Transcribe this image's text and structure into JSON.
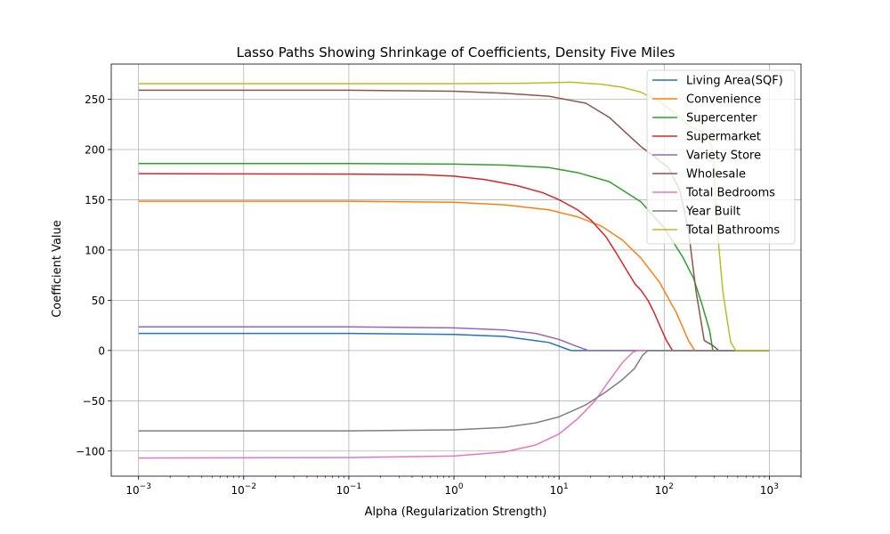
{
  "chart_data": {
    "type": "line",
    "title": "Lasso Paths Showing Shrinkage of Coefficients, Density Five Miles",
    "xlabel": "Alpha (Regularization Strength)",
    "ylabel": "Coefficient Value",
    "x_scale": "log",
    "xlim": [
      0.00055,
      2000
    ],
    "ylim": [
      -125,
      285
    ],
    "x_ticks": [
      0.001,
      0.01,
      0.1,
      1,
      10,
      100,
      1000
    ],
    "x_tick_labels": [
      {
        "base": "10",
        "exp": "−3"
      },
      {
        "base": "10",
        "exp": "−2"
      },
      {
        "base": "10",
        "exp": "−1"
      },
      {
        "base": "10",
        "exp": "0"
      },
      {
        "base": "10",
        "exp": "1"
      },
      {
        "base": "10",
        "exp": "2"
      },
      {
        "base": "10",
        "exp": "3"
      }
    ],
    "y_ticks": [
      -100,
      -50,
      0,
      50,
      100,
      150,
      200,
      250
    ],
    "y_tick_labels": [
      "−100",
      "−50",
      "0",
      "50",
      "100",
      "150",
      "200",
      "250"
    ],
    "grid": true,
    "legend_position": "top-right",
    "series": [
      {
        "name": "Living Area(SQF)",
        "color": "#1f77b4",
        "x": [
          0.001,
          0.1,
          1,
          3,
          8,
          13,
          1000
        ],
        "y": [
          17,
          17,
          16,
          14,
          8,
          0,
          0
        ]
      },
      {
        "name": "Convenience",
        "color": "#ff7f0e",
        "x": [
          0.001,
          0.1,
          1,
          3,
          8,
          15,
          25,
          40,
          60,
          90,
          130,
          170,
          195,
          1000
        ],
        "y": [
          148.5,
          148.5,
          147.5,
          145,
          140,
          133,
          124,
          110,
          92,
          68,
          38,
          10,
          0,
          0
        ]
      },
      {
        "name": "Supercenter",
        "color": "#2ca02c",
        "x": [
          0.001,
          0.1,
          1,
          3,
          8,
          15,
          30,
          60,
          100,
          150,
          190,
          230,
          270,
          290,
          1000
        ],
        "y": [
          186,
          186,
          185.5,
          184.5,
          182,
          177,
          168,
          148,
          122,
          93,
          72,
          45,
          20,
          0,
          0
        ]
      },
      {
        "name": "Supermarket",
        "color": "#d62728",
        "x": [
          0.001,
          0.1,
          0.5,
          1,
          2,
          4,
          7,
          10,
          15,
          20,
          28,
          35,
          45,
          53,
          60,
          70,
          80,
          95,
          105,
          120,
          1000
        ],
        "y": [
          176,
          175.5,
          175,
          173.5,
          170,
          164,
          157,
          150,
          140,
          130,
          113,
          97,
          78,
          66,
          60,
          50,
          38,
          20,
          10,
          0,
          0
        ]
      },
      {
        "name": "Variety Store",
        "color": "#9467bd",
        "x": [
          0.001,
          0.1,
          1,
          3,
          6,
          10,
          14,
          19,
          1000
        ],
        "y": [
          23.5,
          23.5,
          22.5,
          20.5,
          17,
          11,
          5,
          0,
          0
        ]
      },
      {
        "name": "Wholesale",
        "color": "#8c564b",
        "x": [
          0.001,
          0.1,
          1,
          3,
          8,
          18,
          30,
          45,
          60,
          80,
          110,
          140,
          170,
          200,
          240,
          290,
          330,
          1000
        ],
        "y": [
          259,
          259,
          258,
          256,
          253,
          246,
          232,
          215,
          203,
          193,
          182,
          160,
          120,
          60,
          10,
          5,
          0,
          0
        ]
      },
      {
        "name": "Total Bedrooms",
        "color": "#e377c2",
        "x": [
          0.001,
          0.1,
          1,
          3,
          6,
          10,
          15,
          22,
          30,
          40,
          50,
          56,
          1000
        ],
        "y": [
          -107,
          -106.5,
          -105,
          -101,
          -94,
          -83,
          -68,
          -50,
          -30,
          -12,
          -2,
          0,
          0
        ]
      },
      {
        "name": "Year Built",
        "color": "#7f7f7f",
        "x": [
          0.001,
          0.1,
          1,
          3,
          6,
          10,
          18,
          28,
          40,
          52,
          62,
          70,
          1000
        ],
        "y": [
          -80,
          -80,
          -79,
          -76.5,
          -72,
          -66,
          -54,
          -41,
          -29,
          -18,
          -5,
          0,
          0
        ]
      },
      {
        "name": "Total Bathrooms",
        "color": "#bcbd22",
        "x": [
          0.001,
          0.1,
          1,
          5,
          13,
          25,
          40,
          60,
          90,
          130,
          180,
          230,
          260,
          290,
          320,
          360,
          400,
          430,
          480,
          1000
        ],
        "y": [
          265.5,
          265.5,
          265.5,
          266,
          267,
          265,
          262,
          257,
          248,
          235,
          222,
          218,
          214,
          200,
          120,
          60,
          28,
          8,
          0,
          0
        ]
      }
    ]
  }
}
